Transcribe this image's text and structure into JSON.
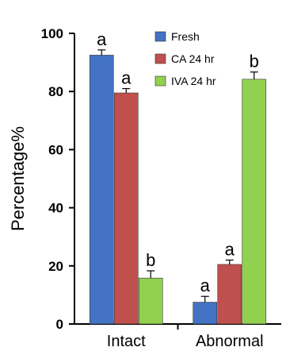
{
  "chart_data": {
    "type": "bar",
    "categories": [
      "Intact",
      "Abnormal"
    ],
    "ylabel": "Percentage%",
    "xlabel": "",
    "ylim": [
      0,
      100
    ],
    "yticks": [
      0,
      20,
      40,
      60,
      80,
      100
    ],
    "legend": "top-right",
    "series": [
      {
        "name": "Fresh",
        "color": "#4472C4",
        "values": [
          92.5,
          7.5
        ],
        "errors": [
          1.8,
          2.0
        ],
        "annotations": [
          "a",
          "a"
        ]
      },
      {
        "name": "CA 24 hr",
        "color": "#C0504D",
        "values": [
          79.5,
          20.5
        ],
        "errors": [
          1.5,
          1.5
        ],
        "annotations": [
          "a",
          "a"
        ]
      },
      {
        "name": "IVA 24 hr",
        "color": "#92D050",
        "values": [
          15.8,
          84.2
        ],
        "errors": [
          2.5,
          2.5
        ],
        "annotations": [
          "b",
          "b"
        ]
      }
    ]
  }
}
